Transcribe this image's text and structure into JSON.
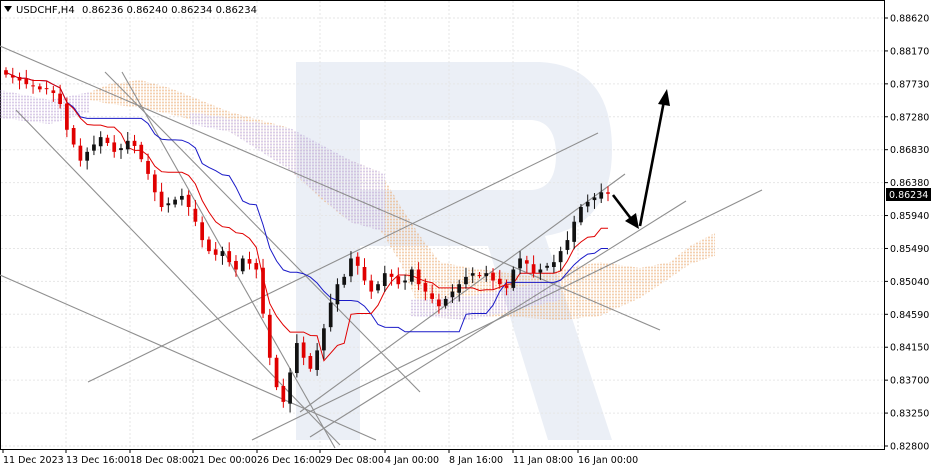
{
  "header": {
    "symbol": "USDCHF,H4",
    "ohlc": "0.86236 0.86240 0.86234 0.86234"
  },
  "chart_data": {
    "type": "candlestick",
    "symbol": "USDCHF",
    "timeframe": "H4",
    "y_ticks": [
      "0.88620",
      "0.88170",
      "0.87730",
      "0.87280",
      "0.86830",
      "0.86380",
      "0.85940",
      "0.85490",
      "0.85040",
      "0.84590",
      "0.84150",
      "0.83700",
      "0.83250",
      "0.82800"
    ],
    "x_ticks": [
      "11 Dec 2023",
      "13 Dec 16:00",
      "18 Dec 08:00",
      "21 Dec 00:00",
      "26 Dec 16:00",
      "29 Dec 08:00",
      "4 Jan 00:00",
      "8 Jan 16:00",
      "11 Jan 08:00",
      "16 Jan 00:00"
    ],
    "last_price": "0.86234",
    "ylim": [
      0.828,
      0.888
    ],
    "candle_count": 90,
    "closes": [
      0.8785,
      0.8781,
      0.8777,
      0.8772,
      0.8769,
      0.8765,
      0.8766,
      0.876,
      0.8745,
      0.871,
      0.869,
      0.8668,
      0.868,
      0.869,
      0.87,
      0.8692,
      0.868,
      0.8685,
      0.8695,
      0.8688,
      0.867,
      0.865,
      0.8625,
      0.8605,
      0.861,
      0.8615,
      0.862,
      0.8605,
      0.8585,
      0.856,
      0.8545,
      0.854,
      0.8545,
      0.853,
      0.852,
      0.8535,
      0.8528,
      0.852,
      0.846,
      0.84,
      0.836,
      0.834,
      0.838,
      0.842,
      0.84,
      0.8385,
      0.841,
      0.844,
      0.8475,
      0.85,
      0.851,
      0.8535,
      0.8525,
      0.8505,
      0.849,
      0.85,
      0.8515,
      0.851,
      0.85,
      0.8505,
      0.852,
      0.85,
      0.849,
      0.848,
      0.847,
      0.848,
      0.849,
      0.85,
      0.851,
      0.8515,
      0.8512,
      0.8515,
      0.8505,
      0.85,
      0.8495,
      0.852,
      0.8535,
      0.8528,
      0.8515,
      0.852,
      0.8525,
      0.853,
      0.8545,
      0.856,
      0.8585,
      0.8605,
      0.8612,
      0.8618,
      0.8625,
      0.8623
    ],
    "indicators": [
      "ichimoku-tenkan",
      "ichimoku-kijun",
      "ichimoku-cloud"
    ],
    "grid": true
  }
}
